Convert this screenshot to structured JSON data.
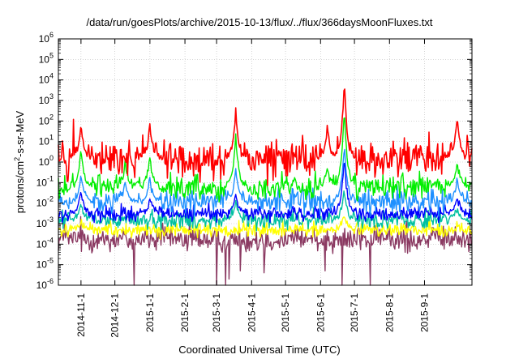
{
  "chart_data": {
    "type": "line",
    "title": "/data/run/goesPlots/archive/2015-10-13/flux/../flux/366daysMoonFluxes.txt",
    "ylabel": "protons/cm²-s-sr-MeV",
    "ylabel_parts": {
      "pre": "protons/cm",
      "sup": "2",
      "post": "-s-sr-MeV"
    },
    "xlabel": "Coordinated Universal Time (UTC)",
    "yscale": "log",
    "ylim": [
      1e-06,
      1000000.0
    ],
    "yticks": [
      {
        "value": 1e-06,
        "base": "10",
        "exp": "-6"
      },
      {
        "value": 1e-05,
        "base": "10",
        "exp": "-5"
      },
      {
        "value": 0.0001,
        "base": "10",
        "exp": "-4"
      },
      {
        "value": 0.001,
        "base": "10",
        "exp": "-3"
      },
      {
        "value": 0.01,
        "base": "10",
        "exp": "-2"
      },
      {
        "value": 0.1,
        "base": "10",
        "exp": "-1"
      },
      {
        "value": 1.0,
        "base": "10",
        "exp": "0"
      },
      {
        "value": 10.0,
        "base": "10",
        "exp": "1"
      },
      {
        "value": 100.0,
        "base": "10",
        "exp": "2"
      },
      {
        "value": 1000.0,
        "base": "10",
        "exp": "3"
      },
      {
        "value": 10000.0,
        "base": "10",
        "exp": "4"
      },
      {
        "value": 100000.0,
        "base": "10",
        "exp": "5"
      },
      {
        "value": 1000000.0,
        "base": "10",
        "exp": "6"
      }
    ],
    "xlim": [
      "2014-10-12",
      "2015-10-13"
    ],
    "xticks": [
      "2014-11-1",
      "2014-12-1",
      "2015-1-1",
      "2015-2-1",
      "2015-3-1",
      "2015-4-1",
      "2015-5-1",
      "2015-6-1",
      "2015-7-1",
      "2015-8-1",
      "2015-9-1"
    ],
    "grid": true,
    "legend": "none",
    "series": [
      {
        "color": "#8b3a62",
        "baseline": 0.00018,
        "spread": 0.5,
        "events": [],
        "dips": [
          {
            "x": "2014-12-18",
            "y": 1e-06
          },
          {
            "x": "2015-3-1",
            "y": 1e-06
          },
          {
            "x": "2015-3-9",
            "y": 1e-06
          },
          {
            "x": "2015-3-12",
            "y": 2e-06
          },
          {
            "x": "2015-6-20",
            "y": 1e-06
          },
          {
            "x": "2015-7-15",
            "y": 1e-06
          },
          {
            "x": "2015-3-22",
            "y": 5e-06
          },
          {
            "x": "2015-4-12",
            "y": 4e-06
          },
          {
            "x": "2015-6-5",
            "y": 5e-06
          }
        ]
      },
      {
        "color": "#ffff00",
        "baseline": 0.0005,
        "spread": 0.3,
        "events": [
          {
            "x": "2015-6-22",
            "peak": 0.003
          },
          {
            "x": "2014-11-1",
            "peak": 0.0012
          }
        ]
      },
      {
        "color": "#00c0a0",
        "baseline": 0.0015,
        "spread": 0.35,
        "events": [
          {
            "x": "2015-6-22",
            "peak": 0.05
          },
          {
            "x": "2014-11-1",
            "peak": 0.01
          },
          {
            "x": "2015-3-18",
            "peak": 0.01
          },
          {
            "x": "2015-9-30",
            "peak": 0.006
          }
        ]
      },
      {
        "color": "#0000ff",
        "baseline": 0.003,
        "spread": 0.3,
        "events": [
          {
            "x": "2015-6-22",
            "peak": 2.0
          },
          {
            "x": "2014-11-1",
            "peak": 0.05
          },
          {
            "x": "2015-3-18",
            "peak": 0.03
          },
          {
            "x": "2015-1-1",
            "peak": 0.02
          },
          {
            "x": "2015-9-30",
            "peak": 0.02
          }
        ]
      },
      {
        "color": "#1e90ff",
        "baseline": 0.012,
        "spread": 0.45,
        "events": [
          {
            "x": "2015-6-22",
            "peak": 8.0
          },
          {
            "x": "2014-11-1",
            "peak": 0.3
          },
          {
            "x": "2015-3-18",
            "peak": 0.5
          },
          {
            "x": "2015-1-1",
            "peak": 0.15
          },
          {
            "x": "2014-12-10",
            "peak": 0.1
          },
          {
            "x": "2015-9-30",
            "peak": 0.2
          }
        ]
      },
      {
        "color": "#00ee00",
        "baseline": 0.06,
        "spread": 0.5,
        "events": [
          {
            "x": "2015-6-22",
            "peak": 500
          },
          {
            "x": "2014-11-1",
            "peak": 5
          },
          {
            "x": "2015-3-18",
            "peak": 20
          },
          {
            "x": "2015-1-1",
            "peak": 2
          },
          {
            "x": "2014-12-10",
            "peak": 1
          },
          {
            "x": "2015-9-30",
            "peak": 1
          },
          {
            "x": "2015-6-7",
            "peak": 0.5
          }
        ]
      },
      {
        "color": "#ff0000",
        "baseline": 1.5,
        "spread": 0.8,
        "events": [
          {
            "x": "2015-6-22",
            "peak": 8000
          },
          {
            "x": "2014-11-1",
            "peak": 60
          },
          {
            "x": "2015-3-18",
            "peak": 300
          },
          {
            "x": "2015-1-1",
            "peak": 80
          },
          {
            "x": "2015-9-30",
            "peak": 200
          },
          {
            "x": "2015-6-7",
            "peak": 60
          }
        ]
      }
    ]
  }
}
